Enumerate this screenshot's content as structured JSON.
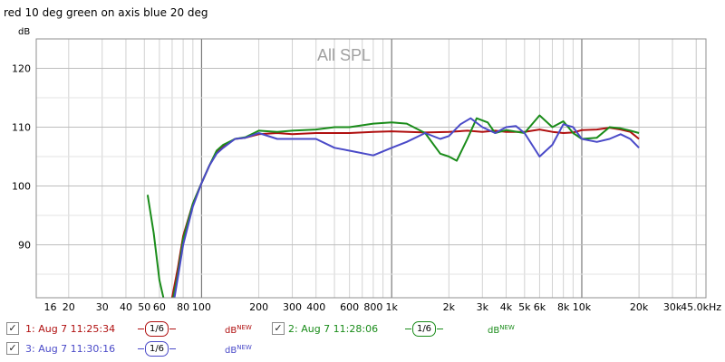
{
  "window": {
    "title": "red 10 deg green on axis blue 20 deg"
  },
  "chart_data": {
    "type": "line",
    "ylabel": "dB",
    "overlay_label": "All SPL",
    "x_scale": "log",
    "xlim": [
      13.5,
      45000
    ],
    "ylim": [
      81,
      125
    ],
    "grid": true,
    "x_ticks": [
      {
        "v": 16,
        "l": "16"
      },
      {
        "v": 20,
        "l": "20"
      },
      {
        "v": 30,
        "l": "30"
      },
      {
        "v": 40,
        "l": "40"
      },
      {
        "v": 50,
        "l": "50"
      },
      {
        "v": 60,
        "l": "60"
      },
      {
        "v": 80,
        "l": "80"
      },
      {
        "v": 100,
        "l": "100"
      },
      {
        "v": 200,
        "l": "200"
      },
      {
        "v": 300,
        "l": "300"
      },
      {
        "v": 400,
        "l": "400"
      },
      {
        "v": 600,
        "l": "600"
      },
      {
        "v": 800,
        "l": "800"
      },
      {
        "v": 1000,
        "l": "1k"
      },
      {
        "v": 2000,
        "l": "2k"
      },
      {
        "v": 3000,
        "l": "3k"
      },
      {
        "v": 4000,
        "l": "4k"
      },
      {
        "v": 5000,
        "l": "5k"
      },
      {
        "v": 6000,
        "l": "6k"
      },
      {
        "v": 8000,
        "l": "8k"
      },
      {
        "v": 10000,
        "l": "10k"
      },
      {
        "v": 20000,
        "l": "20k"
      },
      {
        "v": 30000,
        "l": "30k"
      },
      {
        "v": 45000,
        "l": "45.0kHz"
      }
    ],
    "y_ticks": [
      {
        "v": 90,
        "l": "90"
      },
      {
        "v": 100,
        "l": "100"
      },
      {
        "v": 110,
        "l": "110"
      },
      {
        "v": 120,
        "l": "120"
      }
    ],
    "series": [
      {
        "legend_text": "1: Aug 7 11:25:34",
        "color": "#b01010",
        "points": [
          [
            60,
            80
          ],
          [
            66,
            80
          ],
          [
            70,
            81
          ],
          [
            75,
            86
          ],
          [
            80,
            91.5
          ],
          [
            90,
            97
          ],
          [
            100,
            100.5
          ],
          [
            110,
            103.5
          ],
          [
            120,
            105.8
          ],
          [
            130,
            106.8
          ],
          [
            150,
            108
          ],
          [
            170,
            108.2
          ],
          [
            200,
            108.8
          ],
          [
            250,
            109
          ],
          [
            300,
            108.8
          ],
          [
            400,
            109
          ],
          [
            500,
            109
          ],
          [
            600,
            109
          ],
          [
            800,
            109.2
          ],
          [
            1000,
            109.3
          ],
          [
            1500,
            109.1
          ],
          [
            2000,
            109.2
          ],
          [
            2500,
            109.4
          ],
          [
            3000,
            109.2
          ],
          [
            3500,
            109.4
          ],
          [
            4000,
            109.2
          ],
          [
            5000,
            109.2
          ],
          [
            6000,
            109.6
          ],
          [
            7000,
            109.2
          ],
          [
            8000,
            109
          ],
          [
            9000,
            109.1
          ],
          [
            10000,
            109.5
          ],
          [
            12000,
            109.6
          ],
          [
            14000,
            109.9
          ],
          [
            16000,
            109.6
          ],
          [
            18000,
            109.2
          ],
          [
            20000,
            108
          ]
        ]
      },
      {
        "legend_text": "2: Aug 7 11:28:06",
        "color": "#1a8c1a",
        "points": [
          [
            52,
            98.5
          ],
          [
            56,
            92
          ],
          [
            60,
            84
          ],
          [
            64,
            80
          ],
          [
            70,
            80
          ],
          [
            75,
            85
          ],
          [
            80,
            91
          ],
          [
            90,
            97
          ],
          [
            100,
            100.5
          ],
          [
            110,
            103.5
          ],
          [
            120,
            106
          ],
          [
            130,
            107
          ],
          [
            150,
            108
          ],
          [
            170,
            108.3
          ],
          [
            200,
            109.4
          ],
          [
            250,
            109.2
          ],
          [
            300,
            109.4
          ],
          [
            400,
            109.6
          ],
          [
            500,
            110
          ],
          [
            600,
            110
          ],
          [
            800,
            110.6
          ],
          [
            1000,
            110.8
          ],
          [
            1200,
            110.6
          ],
          [
            1500,
            109
          ],
          [
            1800,
            105.5
          ],
          [
            2000,
            105
          ],
          [
            2200,
            104.3
          ],
          [
            2500,
            108
          ],
          [
            2800,
            111.5
          ],
          [
            3200,
            110.8
          ],
          [
            3500,
            109
          ],
          [
            4000,
            109.5
          ],
          [
            5000,
            109
          ],
          [
            6000,
            112
          ],
          [
            7000,
            110
          ],
          [
            8000,
            111
          ],
          [
            9000,
            109
          ],
          [
            10000,
            108
          ],
          [
            12000,
            108.2
          ],
          [
            14000,
            110
          ],
          [
            16000,
            109.8
          ],
          [
            18000,
            109.4
          ],
          [
            20000,
            109
          ]
        ]
      },
      {
        "legend_text": "3: Aug 7 11:30:16",
        "color": "#4a4ac8",
        "points": [
          [
            68,
            80
          ],
          [
            72,
            81
          ],
          [
            76,
            85.5
          ],
          [
            80,
            90
          ],
          [
            90,
            96.5
          ],
          [
            100,
            100.5
          ],
          [
            110,
            103.5
          ],
          [
            120,
            105.5
          ],
          [
            130,
            106.5
          ],
          [
            150,
            108
          ],
          [
            170,
            108.2
          ],
          [
            200,
            109
          ],
          [
            250,
            108
          ],
          [
            300,
            108
          ],
          [
            400,
            108
          ],
          [
            500,
            106.5
          ],
          [
            600,
            106
          ],
          [
            800,
            105.2
          ],
          [
            1000,
            106.5
          ],
          [
            1200,
            107.5
          ],
          [
            1500,
            109
          ],
          [
            1800,
            108
          ],
          [
            2000,
            108.5
          ],
          [
            2300,
            110.5
          ],
          [
            2600,
            111.5
          ],
          [
            3000,
            110
          ],
          [
            3500,
            109
          ],
          [
            4000,
            110
          ],
          [
            4500,
            110.2
          ],
          [
            5000,
            109
          ],
          [
            6000,
            105
          ],
          [
            7000,
            107
          ],
          [
            8000,
            110.5
          ],
          [
            9000,
            110
          ],
          [
            10000,
            108
          ],
          [
            12000,
            107.5
          ],
          [
            14000,
            108
          ],
          [
            16000,
            108.8
          ],
          [
            18000,
            108
          ],
          [
            20000,
            106.5
          ]
        ]
      }
    ]
  },
  "legend": [
    {
      "text": "1: Aug 7 11:25:34",
      "smoothing": "1/6",
      "unit": "dB",
      "unit_sup": "NEW",
      "color": "#b01010",
      "checked": true
    },
    {
      "text": "2: Aug 7 11:28:06",
      "smoothing": "1/6",
      "unit": "dB",
      "unit_sup": "NEW",
      "color": "#1a8c1a",
      "checked": true
    },
    {
      "text": "3: Aug 7 11:30:16",
      "smoothing": "1/6",
      "unit": "dB",
      "unit_sup": "NEW",
      "color": "#4a4ac8",
      "checked": true
    }
  ],
  "check_glyph": "✓"
}
